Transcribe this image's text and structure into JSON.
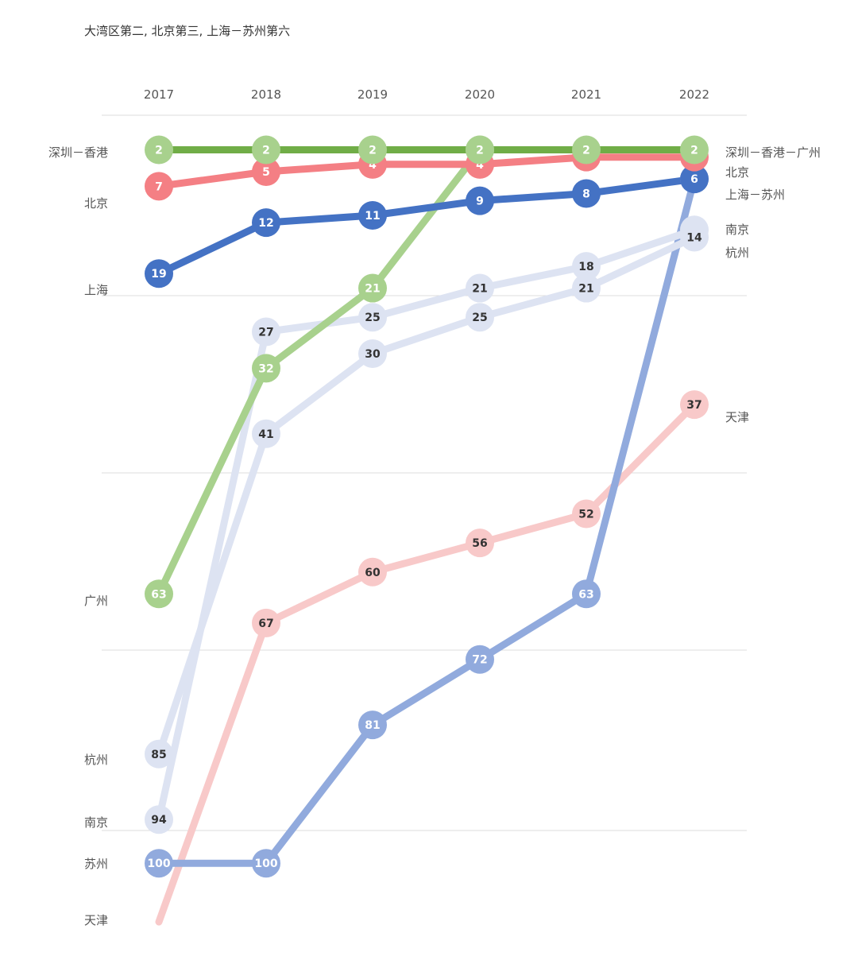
{
  "chart_data": {
    "type": "line",
    "title": "大湾区第二, 北京第三, 上海－苏州第六",
    "years": [
      "2017",
      "2018",
      "2019",
      "2020",
      "2021",
      "2022"
    ],
    "series": [
      {
        "id": "tianjin",
        "color": "#f8c9c9",
        "text_color": "#333333",
        "start_label": "天津",
        "end_label": "天津",
        "values": [
          null,
          67,
          60,
          56,
          52,
          37
        ],
        "tail": true
      },
      {
        "id": "suzhou",
        "color": "#91aadd",
        "text_color": "#ffffff",
        "start_label": "苏州",
        "end_label": null,
        "values": [
          100,
          100,
          81,
          72,
          63,
          6
        ]
      },
      {
        "id": "nanjing",
        "color": "#dde3f2",
        "text_color": "#333333",
        "start_label": "南京",
        "end_label": "南京",
        "values": [
          94,
          27,
          25,
          21,
          18,
          13
        ]
      },
      {
        "id": "hangzhou",
        "color": "#dde3f2",
        "text_color": "#333333",
        "start_label": "杭州",
        "end_label": "杭州",
        "values": [
          85,
          41,
          30,
          25,
          21,
          14
        ]
      },
      {
        "id": "guangzhou",
        "color": "#a8d18d",
        "text_color": "#ffffff",
        "start_label": "广州",
        "end_label": null,
        "values": [
          63,
          32,
          21,
          2,
          null,
          null
        ]
      },
      {
        "id": "shanghai",
        "color": "#4472c4",
        "text_color": "#ffffff",
        "start_label": "上海",
        "end_label": "上海－苏州",
        "values": [
          19,
          12,
          11,
          9,
          8,
          6
        ]
      },
      {
        "id": "beijing",
        "color": "#f47f84",
        "text_color": "#ffffff",
        "start_label": "北京",
        "end_label": "北京",
        "values": [
          7,
          5,
          4,
          4,
          3,
          3
        ]
      },
      {
        "id": "shenzhen",
        "color": "#70ad47",
        "node_color": "#a8d18d",
        "text_color": "#ffffff",
        "start_label": "深圳－香港",
        "end_label": "深圳－香港－广州",
        "values": [
          2,
          2,
          2,
          2,
          2,
          2
        ]
      }
    ],
    "ylim": [
      1,
      100
    ],
    "grid": true,
    "y_inverted": true
  }
}
